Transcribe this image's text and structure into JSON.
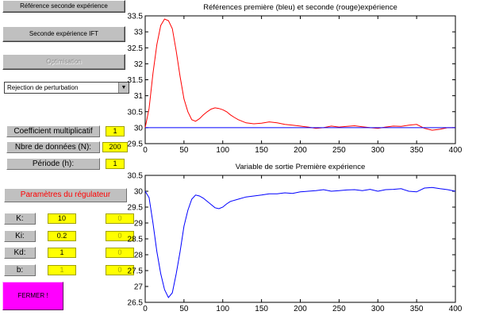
{
  "buttons": {
    "ref_seconde": "Référence seconde expérience",
    "seconde_ift": "Seconde expérience IFT",
    "optimisation": "Optimisation",
    "fermer": "FERMER !"
  },
  "dropdown": {
    "value": "Rejection de perturbation"
  },
  "params": {
    "coef_label": "Coefficient multiplicatif",
    "coef_value": "1",
    "n_label": "Nbre de données (N):",
    "n_value": "200",
    "periode_label": "Période (h):",
    "periode_value": "1"
  },
  "regulateur": {
    "title": "Paramètres du régulateur",
    "rows": [
      {
        "label": "K:",
        "value": "10",
        "value2": "0"
      },
      {
        "label": "Ki:",
        "value": "0.2",
        "value2": "0"
      },
      {
        "label": "Kd:",
        "value": "1",
        "value2": "0"
      },
      {
        "label": "b:",
        "value": "1",
        "value2": "0"
      }
    ]
  },
  "chart_data": [
    {
      "type": "line",
      "title": "Références première (bleu) et seconde (rouge)expérience",
      "xlim": [
        0,
        400
      ],
      "ylim": [
        29.5,
        33.5
      ],
      "xticks": [
        0,
        50,
        100,
        150,
        200,
        250,
        300,
        350,
        400
      ],
      "yticks": [
        29.5,
        30,
        30.5,
        31,
        31.5,
        32,
        32.5,
        33,
        33.5
      ],
      "grid": false,
      "series": [
        {
          "color": "#ff0000",
          "x": [
            0,
            5,
            10,
            15,
            20,
            25,
            30,
            35,
            40,
            45,
            50,
            55,
            60,
            65,
            70,
            75,
            80,
            85,
            90,
            95,
            100,
            105,
            110,
            115,
            120,
            130,
            140,
            150,
            160,
            170,
            180,
            190,
            200,
            210,
            220,
            230,
            240,
            250,
            260,
            270,
            280,
            290,
            300,
            310,
            320,
            330,
            340,
            350,
            360,
            370,
            380,
            390,
            400
          ],
          "y": [
            30.0,
            30.6,
            31.7,
            32.6,
            33.2,
            33.4,
            33.35,
            33.1,
            32.4,
            31.6,
            30.9,
            30.5,
            30.25,
            30.2,
            30.28,
            30.4,
            30.5,
            30.58,
            30.62,
            30.6,
            30.56,
            30.5,
            30.4,
            30.32,
            30.25,
            30.15,
            30.12,
            30.14,
            30.18,
            30.15,
            30.1,
            30.08,
            30.05,
            30.02,
            29.98,
            30.0,
            30.05,
            30.02,
            30.04,
            30.06,
            30.03,
            30.0,
            29.98,
            30.02,
            30.05,
            30.04,
            30.08,
            30.1,
            29.98,
            29.92,
            29.95,
            30.0,
            30.0
          ]
        },
        {
          "color": "#0000ff",
          "x": [
            0,
            400
          ],
          "y": [
            30.0,
            30.0
          ]
        }
      ]
    },
    {
      "type": "line",
      "title": "Variable de sortie Première expérience",
      "xlim": [
        0,
        400
      ],
      "ylim": [
        26.5,
        30.5
      ],
      "xticks": [
        0,
        50,
        100,
        150,
        200,
        250,
        300,
        350,
        400
      ],
      "yticks": [
        26.5,
        27,
        27.5,
        28,
        28.5,
        29,
        29.5,
        30,
        30.5
      ],
      "grid": false,
      "series": [
        {
          "color": "#0000ff",
          "x": [
            0,
            5,
            10,
            15,
            20,
            25,
            30,
            35,
            40,
            45,
            50,
            55,
            60,
            65,
            70,
            75,
            80,
            85,
            90,
            95,
            100,
            105,
            110,
            120,
            130,
            140,
            150,
            160,
            170,
            180,
            190,
            200,
            210,
            220,
            230,
            240,
            250,
            260,
            270,
            280,
            290,
            300,
            310,
            320,
            330,
            340,
            350,
            360,
            370,
            380,
            390,
            400
          ],
          "y": [
            30.0,
            29.8,
            29.0,
            28.1,
            27.4,
            26.9,
            26.65,
            26.8,
            27.4,
            28.1,
            28.9,
            29.4,
            29.75,
            29.88,
            29.85,
            29.78,
            29.68,
            29.58,
            29.48,
            29.45,
            29.5,
            29.6,
            29.68,
            29.75,
            29.82,
            29.85,
            29.88,
            29.92,
            29.92,
            29.95,
            29.93,
            29.98,
            30.0,
            30.02,
            30.05,
            30.0,
            30.02,
            30.04,
            30.05,
            30.02,
            30.06,
            30.0,
            30.05,
            30.06,
            30.08,
            30.0,
            29.98,
            30.1,
            30.12,
            30.08,
            30.05,
            30.0
          ]
        }
      ]
    }
  ]
}
